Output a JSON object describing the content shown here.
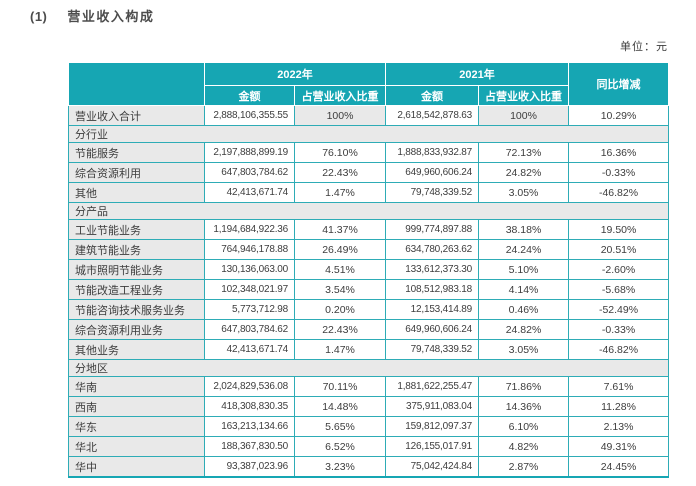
{
  "title": {
    "number": "(1)",
    "text": "营业收入构成"
  },
  "unit_label": "单位：元",
  "colors": {
    "header_teal": "#16a6b3",
    "border_teal": "#2eacb6",
    "row_gray": "#e9e9e9"
  },
  "table": {
    "col_groups": [
      "2022年",
      "2021年",
      "同比增减"
    ],
    "sub_headers": [
      "金额",
      "占营业收入比重",
      "金额",
      "占营业收入比重"
    ],
    "rows": [
      {
        "type": "total",
        "label": "营业收入合计",
        "amount_2022": "2,888,106,355.55",
        "pct_2022": "100%",
        "amount_2021": "2,618,542,878.63",
        "pct_2021": "100%",
        "yoy": "10.29%"
      },
      {
        "type": "section",
        "label": "分行业"
      },
      {
        "type": "data",
        "label": "节能服务",
        "amount_2022": "2,197,888,899.19",
        "pct_2022": "76.10%",
        "amount_2021": "1,888,833,932.87",
        "pct_2021": "72.13%",
        "yoy": "16.36%"
      },
      {
        "type": "data",
        "label": "综合资源利用",
        "amount_2022": "647,803,784.62",
        "pct_2022": "22.43%",
        "amount_2021": "649,960,606.24",
        "pct_2021": "24.82%",
        "yoy": "-0.33%"
      },
      {
        "type": "data",
        "label": "其他",
        "amount_2022": "42,413,671.74",
        "pct_2022": "1.47%",
        "amount_2021": "79,748,339.52",
        "pct_2021": "3.05%",
        "yoy": "-46.82%"
      },
      {
        "type": "section",
        "label": "分产品"
      },
      {
        "type": "data",
        "label": "工业节能业务",
        "amount_2022": "1,194,684,922.36",
        "pct_2022": "41.37%",
        "amount_2021": "999,774,897.88",
        "pct_2021": "38.18%",
        "yoy": "19.50%"
      },
      {
        "type": "data",
        "label": "建筑节能业务",
        "amount_2022": "764,946,178.88",
        "pct_2022": "26.49%",
        "amount_2021": "634,780,263.62",
        "pct_2021": "24.24%",
        "yoy": "20.51%"
      },
      {
        "type": "data",
        "label": "城市照明节能业务",
        "amount_2022": "130,136,063.00",
        "pct_2022": "4.51%",
        "amount_2021": "133,612,373.30",
        "pct_2021": "5.10%",
        "yoy": "-2.60%"
      },
      {
        "type": "data",
        "label": "节能改造工程业务",
        "amount_2022": "102,348,021.97",
        "pct_2022": "3.54%",
        "amount_2021": "108,512,983.18",
        "pct_2021": "4.14%",
        "yoy": "-5.68%"
      },
      {
        "type": "data",
        "label": "节能咨询技术服务业务",
        "amount_2022": "5,773,712.98",
        "pct_2022": "0.20%",
        "amount_2021": "12,153,414.89",
        "pct_2021": "0.46%",
        "yoy": "-52.49%"
      },
      {
        "type": "data",
        "label": "综合资源利用业务",
        "amount_2022": "647,803,784.62",
        "pct_2022": "22.43%",
        "amount_2021": "649,960,606.24",
        "pct_2021": "24.82%",
        "yoy": "-0.33%"
      },
      {
        "type": "data",
        "label": "其他业务",
        "amount_2022": "42,413,671.74",
        "pct_2022": "1.47%",
        "amount_2021": "79,748,339.52",
        "pct_2021": "3.05%",
        "yoy": "-46.82%"
      },
      {
        "type": "section",
        "label": "分地区"
      },
      {
        "type": "data",
        "label": "华南",
        "amount_2022": "2,024,829,536.08",
        "pct_2022": "70.11%",
        "amount_2021": "1,881,622,255.47",
        "pct_2021": "71.86%",
        "yoy": "7.61%"
      },
      {
        "type": "data",
        "label": "西南",
        "amount_2022": "418,308,830.35",
        "pct_2022": "14.48%",
        "amount_2021": "375,911,083.04",
        "pct_2021": "14.36%",
        "yoy": "11.28%"
      },
      {
        "type": "data",
        "label": "华东",
        "amount_2022": "163,213,134.66",
        "pct_2022": "5.65%",
        "amount_2021": "159,812,097.37",
        "pct_2021": "6.10%",
        "yoy": "2.13%"
      },
      {
        "type": "data",
        "label": "华北",
        "amount_2022": "188,367,830.50",
        "pct_2022": "6.52%",
        "amount_2021": "126,155,017.91",
        "pct_2021": "4.82%",
        "yoy": "49.31%"
      },
      {
        "type": "data",
        "label": "华中",
        "amount_2022": "93,387,023.96",
        "pct_2022": "3.23%",
        "amount_2021": "75,042,424.84",
        "pct_2021": "2.87%",
        "yoy": "24.45%"
      }
    ]
  }
}
